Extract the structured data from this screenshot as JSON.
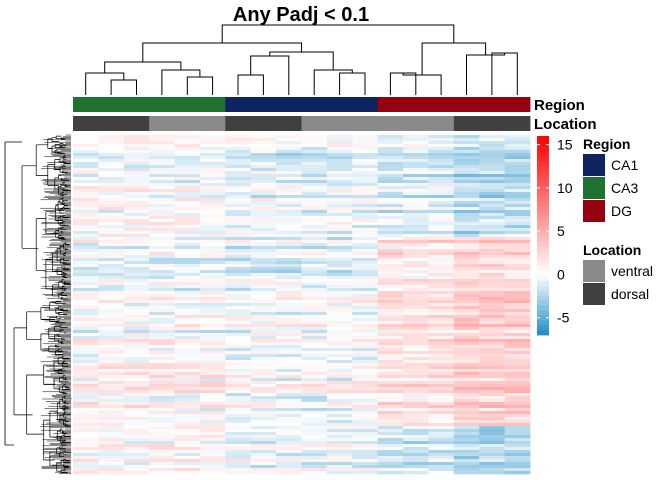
{
  "chart_data": {
    "type": "heatmap",
    "title": "Any Padj < 0.1",
    "annotation_rows": [
      {
        "name": "Region",
        "samples": [
          "CA3",
          "CA3",
          "CA3",
          "CA3",
          "CA3",
          "CA3",
          "CA1",
          "CA1",
          "CA1",
          "CA1",
          "CA1",
          "CA1",
          "DG",
          "DG",
          "DG",
          "DG",
          "DG",
          "DG"
        ]
      },
      {
        "name": "Location",
        "samples": [
          "dorsal",
          "dorsal",
          "dorsal",
          "ventral",
          "ventral",
          "ventral",
          "dorsal",
          "dorsal",
          "dorsal",
          "ventral",
          "ventral",
          "ventral",
          "ventral",
          "ventral",
          "ventral",
          "dorsal",
          "dorsal",
          "dorsal"
        ]
      }
    ],
    "color_scale": {
      "range": [
        -7,
        16
      ],
      "ticks": [
        "15",
        "10",
        "5",
        "0",
        "-5"
      ],
      "tick_values": [
        15,
        10,
        5,
        0,
        -5
      ],
      "low_color": "#1E8CC8",
      "mid_color": "#FFFFFF",
      "high_color": "#FF0000"
    },
    "legends": [
      {
        "title": "Region",
        "entries": [
          {
            "label": "CA1",
            "color": "#0E2460"
          },
          {
            "label": "CA3",
            "color": "#1E7331"
          },
          {
            "label": "DG",
            "color": "#960111"
          }
        ]
      },
      {
        "title": "Location",
        "entries": [
          {
            "label": "ventral",
            "color": "#8A8A8A"
          },
          {
            "label": "dorsal",
            "color": "#404040"
          }
        ]
      }
    ],
    "column_dendrogram": "hierarchical clustering of 18 samples",
    "row_dendrogram": "hierarchical clustering of genes"
  }
}
